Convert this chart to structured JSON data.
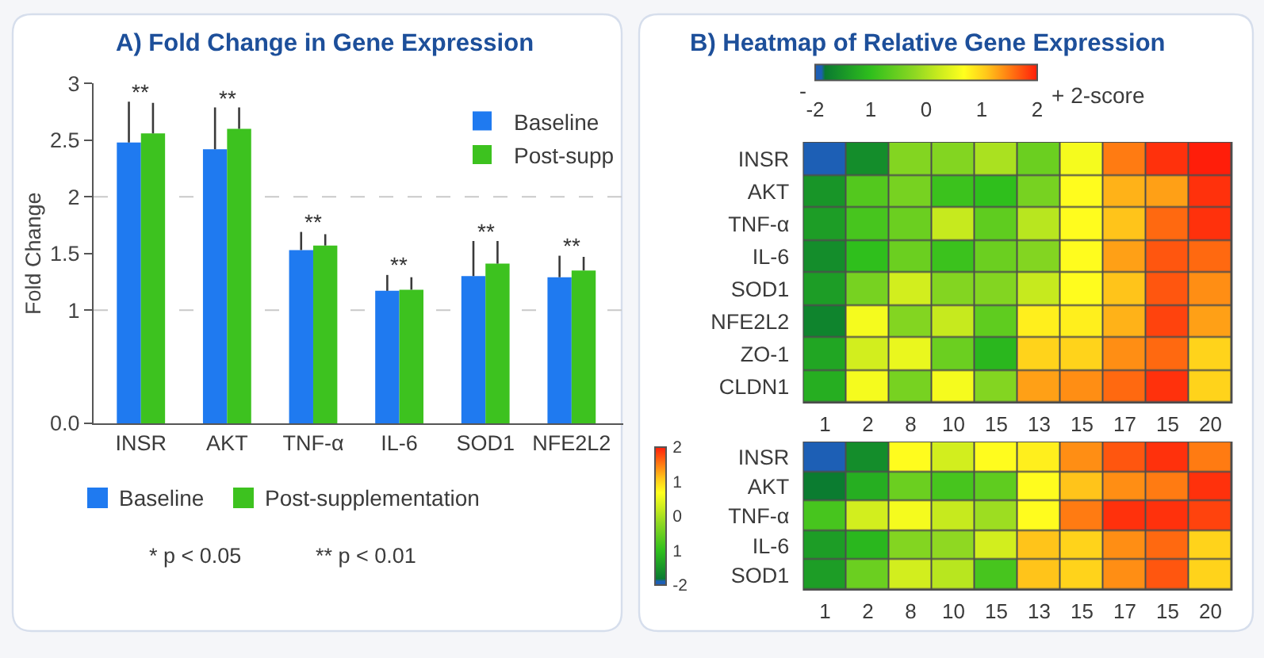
{
  "chart_data": [
    {
      "type": "bar",
      "title": "A) Fold Change in Gene Expression",
      "ylabel": "Fold Change",
      "categories": [
        "INSR",
        "AKT",
        "TNF-α",
        "IL-6",
        "SOD1",
        "NFE2L2"
      ],
      "series": [
        {
          "name": "Baseline",
          "color": "#1f7af0",
          "values": [
            2.48,
            2.42,
            1.53,
            1.17,
            1.3,
            1.29
          ],
          "errors": [
            [
              2.48,
              2.84
            ],
            [
              2.42,
              2.79
            ],
            [
              1.53,
              1.69
            ],
            [
              1.17,
              1.31
            ],
            [
              1.3,
              1.61
            ],
            [
              1.29,
              1.48
            ]
          ]
        },
        {
          "name": "Post-supp",
          "color": "#3dc21f",
          "values": [
            2.56,
            2.6,
            1.57,
            1.18,
            1.41,
            1.35
          ],
          "errors": [
            [
              2.56,
              2.83
            ],
            [
              2.6,
              2.79
            ],
            [
              1.57,
              1.67
            ],
            [
              1.18,
              1.29
            ],
            [
              1.41,
              1.61
            ],
            [
              1.35,
              1.47
            ]
          ]
        }
      ],
      "ylim": [
        0,
        3
      ],
      "yticks": [
        {
          "value": 0,
          "label": "0.0"
        },
        1,
        1.5,
        2,
        2.5,
        3
      ],
      "ref_lines": [
        {
          "axis": "y",
          "value": 1,
          "color": "#c9c9c9",
          "line_style": "dashed"
        },
        {
          "axis": "y",
          "value": 2,
          "color": "#c9c9c9",
          "line_style": "dashed"
        }
      ],
      "legend": "top right",
      "annotations": [
        "**",
        "**",
        "**",
        "**",
        "**",
        "**",
        "Baseline",
        "Post-supplementation",
        "* p < 0.05",
        "** p < 0.01"
      ]
    },
    {
      "type": "heatmap",
      "title": "B) Heatmap of Relative Gene Expression",
      "categories": [
        "1",
        "2",
        "8",
        "10",
        "15",
        "13",
        "15",
        "17",
        "15",
        "20"
      ],
      "y_categories": [
        "INSR",
        "AKT",
        "TNF-α",
        "IL-6",
        "SOD1",
        "NFE2L2",
        "ZO-1",
        "CLDN1"
      ],
      "cells": [
        [
          -2,
          -1.6,
          -0.3,
          -0.3,
          0,
          -0.5,
          0.6,
          1.5,
          1.9,
          2
        ],
        [
          -1.5,
          -0.7,
          -0.4,
          -0.9,
          -1,
          -0.4,
          0.7,
          1.2,
          1.3,
          1.9
        ],
        [
          -1.4,
          -0.8,
          -0.5,
          0.2,
          -0.6,
          0.1,
          0.7,
          1.1,
          1.6,
          1.9
        ],
        [
          -1.6,
          -1,
          -0.5,
          -0.9,
          -0.5,
          -0.3,
          0.7,
          1.3,
          1.7,
          1.6
        ],
        [
          -1.4,
          -0.4,
          0.3,
          -0.3,
          -0.3,
          0.2,
          0.7,
          1.1,
          1.7,
          1.4
        ],
        [
          -1.7,
          0.6,
          -0.3,
          0.2,
          -0.6,
          0.8,
          0.8,
          1.2,
          1.8,
          1.3
        ],
        [
          -1.3,
          0.3,
          0.5,
          -0.5,
          -1.1,
          1,
          1,
          1.4,
          1.6,
          1
        ],
        [
          -1.2,
          0.6,
          -0.4,
          0.6,
          -0.3,
          1.3,
          1.4,
          1.6,
          1.9,
          1
        ]
      ],
      "clim": [
        -2,
        2
      ],
      "cticks": [
        -2,
        {
          "value": -1,
          "label": "1"
        },
        0,
        1,
        2
      ],
      "clabel": "+ 2-score",
      "annotations": [
        "-"
      ]
    },
    {
      "type": "heatmap",
      "categories": [
        "1",
        "2",
        "8",
        "10",
        "15",
        "13",
        "15",
        "17",
        "15",
        "20"
      ],
      "y_categories": [
        "INSR",
        "AKT",
        "TNF-α",
        "IL-6",
        "SOD1"
      ],
      "cells": [
        [
          -2,
          -1.6,
          0.7,
          0.3,
          0.7,
          0.8,
          1.4,
          1.7,
          1.9,
          1.5
        ],
        [
          -1.8,
          -1.2,
          -0.5,
          -0.8,
          -0.6,
          0.7,
          1.1,
          1.4,
          1.5,
          1.9
        ],
        [
          -0.8,
          0.3,
          0.6,
          0.2,
          -0.1,
          0.7,
          1.5,
          1.9,
          1.9,
          1.8
        ],
        [
          -1.4,
          -1.1,
          -0.3,
          -0.2,
          0.3,
          1.1,
          1,
          1.4,
          1.6,
          1
        ],
        [
          -1.4,
          -0.5,
          0.3,
          0.1,
          -0.8,
          1.1,
          1,
          1.4,
          1.7,
          1
        ]
      ],
      "clim": [
        -2,
        2
      ],
      "cticks": [
        -2,
        {
          "value": -1,
          "label": "1"
        },
        0,
        1,
        2
      ]
    }
  ]
}
